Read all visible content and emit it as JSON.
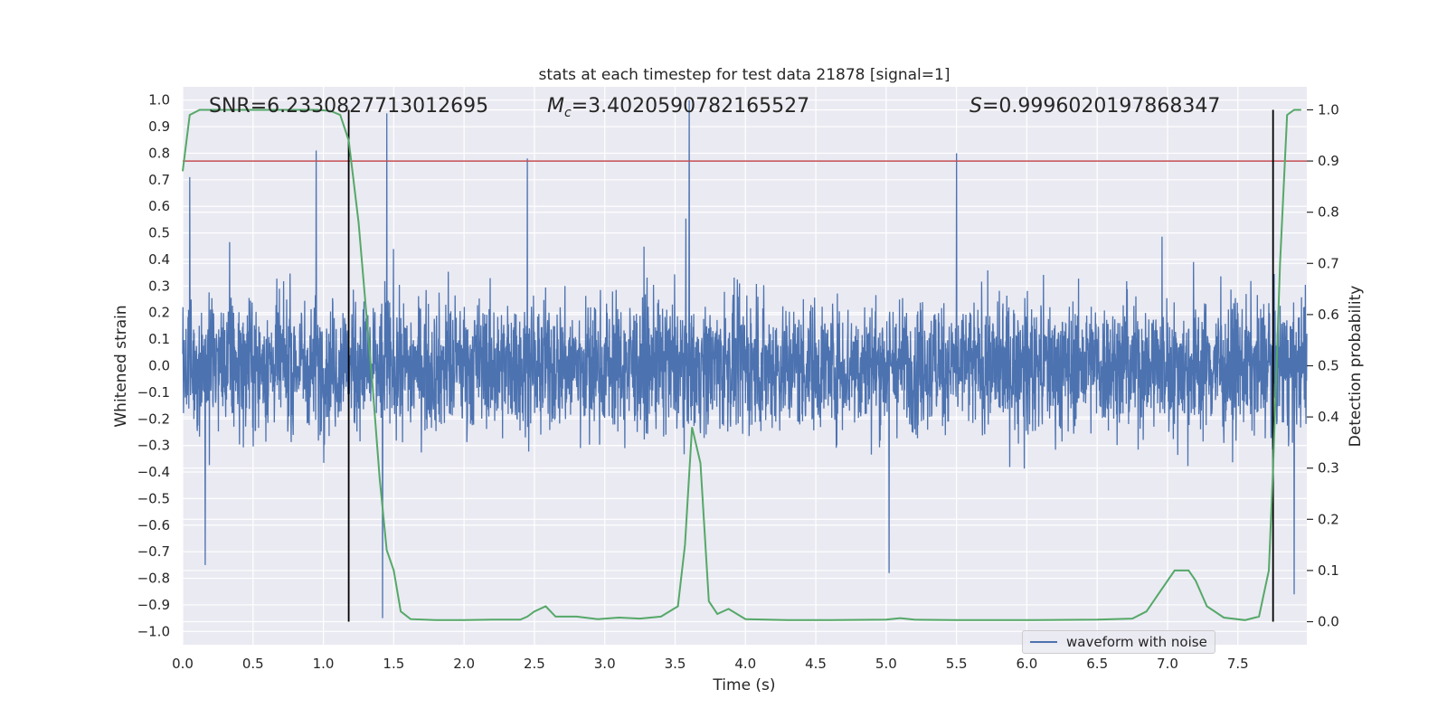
{
  "chart_data": {
    "type": "line",
    "title": "stats at each timestep for test data 21878 [signal=1]",
    "xlabel": "Time (s)",
    "ylabel_left": "Whitened strain",
    "ylabel_right": "Detection probability",
    "xlim": [
      0.0,
      7.99
    ],
    "ylim_left": [
      -1.05,
      1.05
    ],
    "ylim_right": [
      -0.045,
      1.045
    ],
    "x_ticks": [
      "0.0",
      "0.5",
      "1.0",
      "1.5",
      "2.0",
      "2.5",
      "3.0",
      "3.5",
      "4.0",
      "4.5",
      "5.0",
      "5.5",
      "6.0",
      "6.5",
      "7.0",
      "7.5"
    ],
    "x_tick_values": [
      0.0,
      0.5,
      1.0,
      1.5,
      2.0,
      2.5,
      3.0,
      3.5,
      4.0,
      4.5,
      5.0,
      5.5,
      6.0,
      6.5,
      7.0,
      7.5
    ],
    "y_left_ticks": [
      "1.0",
      "0.9",
      "0.8",
      "0.7",
      "0.6",
      "0.5",
      "0.4",
      "0.3",
      "0.2",
      "0.1",
      "0.0",
      "−0.1",
      "−0.2",
      "−0.3",
      "−0.4",
      "−0.5",
      "−0.6",
      "−0.7",
      "−0.8",
      "−0.9",
      "−1.0"
    ],
    "y_left_tick_values": [
      1.0,
      0.9,
      0.8,
      0.7,
      0.6,
      0.5,
      0.4,
      0.3,
      0.2,
      0.1,
      0.0,
      -0.1,
      -0.2,
      -0.3,
      -0.4,
      -0.5,
      -0.6,
      -0.7,
      -0.8,
      -0.9,
      -1.0
    ],
    "y_right_ticks": [
      "1.0",
      "0.9",
      "0.8",
      "0.7",
      "0.6",
      "0.5",
      "0.4",
      "0.3",
      "0.2",
      "0.1",
      "0.0"
    ],
    "y_right_tick_values": [
      1.0,
      0.9,
      0.8,
      0.7,
      0.6,
      0.5,
      0.4,
      0.3,
      0.2,
      0.1,
      0.0
    ],
    "annotations": [
      {
        "key": "snr",
        "prefix": "SNR=",
        "value": "6.2330827713012695"
      },
      {
        "key": "mc",
        "symbol": "M",
        "subscript": "c",
        "value": "=3.4020590782165527"
      },
      {
        "key": "s",
        "symbol": "S",
        "value": "=0.9996020197868347"
      }
    ],
    "legend": {
      "entries": [
        "waveform with noise"
      ],
      "position": "lower-right"
    },
    "grid": true,
    "threshold_line": {
      "axis": "right",
      "value": 0.9,
      "color": "#c44e52"
    },
    "vertical_markers": [
      1.18,
      7.75
    ],
    "waveform": {
      "name": "waveform with noise",
      "axis": "left",
      "color": "#4c72b0",
      "approx_envelope": 0.42,
      "peaks": [
        {
          "x": 0.05,
          "y": 0.71
        },
        {
          "x": 0.95,
          "y": 0.81
        },
        {
          "x": 1.45,
          "y": 0.95
        },
        {
          "x": 1.42,
          "y": -0.95
        },
        {
          "x": 2.45,
          "y": 0.78
        },
        {
          "x": 3.6,
          "y": 1.0
        },
        {
          "x": 5.5,
          "y": 0.8
        },
        {
          "x": 5.02,
          "y": -0.78
        },
        {
          "x": 0.16,
          "y": -0.75
        },
        {
          "x": 7.9,
          "y": -0.86
        }
      ]
    },
    "probability": {
      "axis": "right",
      "color": "#55a868",
      "x": [
        0.0,
        0.05,
        0.12,
        0.3,
        0.6,
        0.95,
        1.05,
        1.12,
        1.18,
        1.25,
        1.3,
        1.35,
        1.4,
        1.45,
        1.5,
        1.55,
        1.62,
        1.8,
        2.0,
        2.2,
        2.4,
        2.45,
        2.5,
        2.58,
        2.65,
        2.72,
        2.8,
        2.95,
        3.1,
        3.25,
        3.4,
        3.52,
        3.57,
        3.62,
        3.68,
        3.74,
        3.8,
        3.88,
        4.0,
        4.3,
        4.6,
        5.0,
        5.1,
        5.2,
        5.5,
        6.0,
        6.5,
        6.75,
        6.85,
        6.95,
        7.05,
        7.15,
        7.2,
        7.28,
        7.4,
        7.55,
        7.65,
        7.72,
        7.75,
        7.8,
        7.85,
        7.9,
        7.95
      ],
      "y": [
        0.88,
        0.99,
        1.0,
        1.0,
        1.0,
        1.0,
        0.998,
        0.99,
        0.94,
        0.78,
        0.62,
        0.46,
        0.28,
        0.14,
        0.1,
        0.02,
        0.005,
        0.003,
        0.003,
        0.004,
        0.004,
        0.01,
        0.02,
        0.03,
        0.01,
        0.01,
        0.01,
        0.005,
        0.008,
        0.006,
        0.01,
        0.03,
        0.15,
        0.38,
        0.31,
        0.04,
        0.015,
        0.025,
        0.005,
        0.003,
        0.003,
        0.004,
        0.007,
        0.004,
        0.003,
        0.003,
        0.004,
        0.006,
        0.02,
        0.06,
        0.1,
        0.1,
        0.08,
        0.03,
        0.008,
        0.003,
        0.01,
        0.1,
        0.3,
        0.7,
        0.99,
        1.0,
        1.0
      ]
    }
  }
}
